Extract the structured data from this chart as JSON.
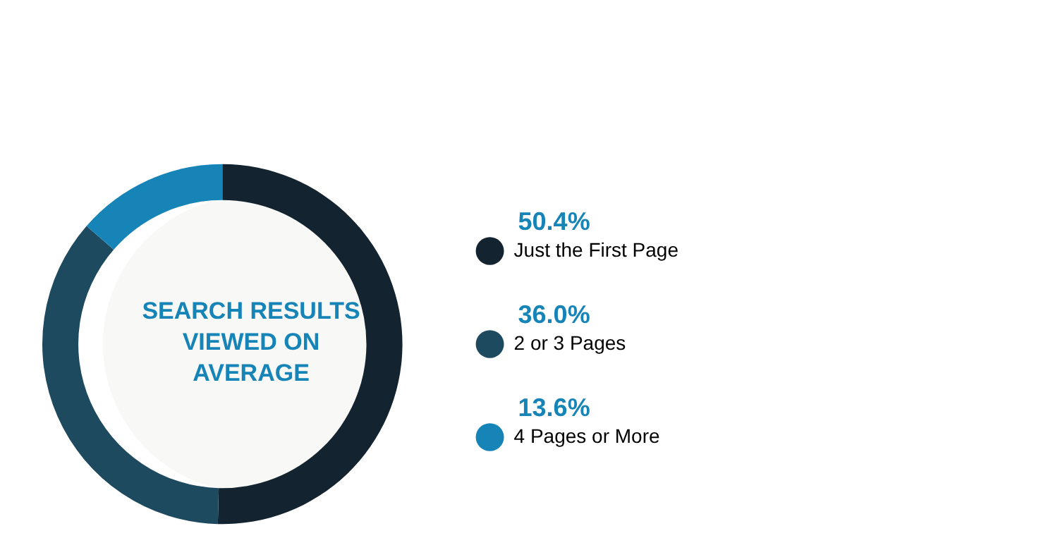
{
  "chart_data": {
    "type": "donut",
    "title": "SEARCH RESULTS VIEWED ON AVERAGE",
    "categories": [
      "Just the First Page",
      "2 or 3 Pages",
      "4 Pages or More"
    ],
    "values": [
      50.4,
      36.0,
      13.6
    ],
    "colors": [
      "#13232f",
      "#1e4a60",
      "#1784b8"
    ],
    "value_labels": [
      "50.4%",
      "36.0%",
      "13.6%"
    ],
    "legend": "right"
  }
}
